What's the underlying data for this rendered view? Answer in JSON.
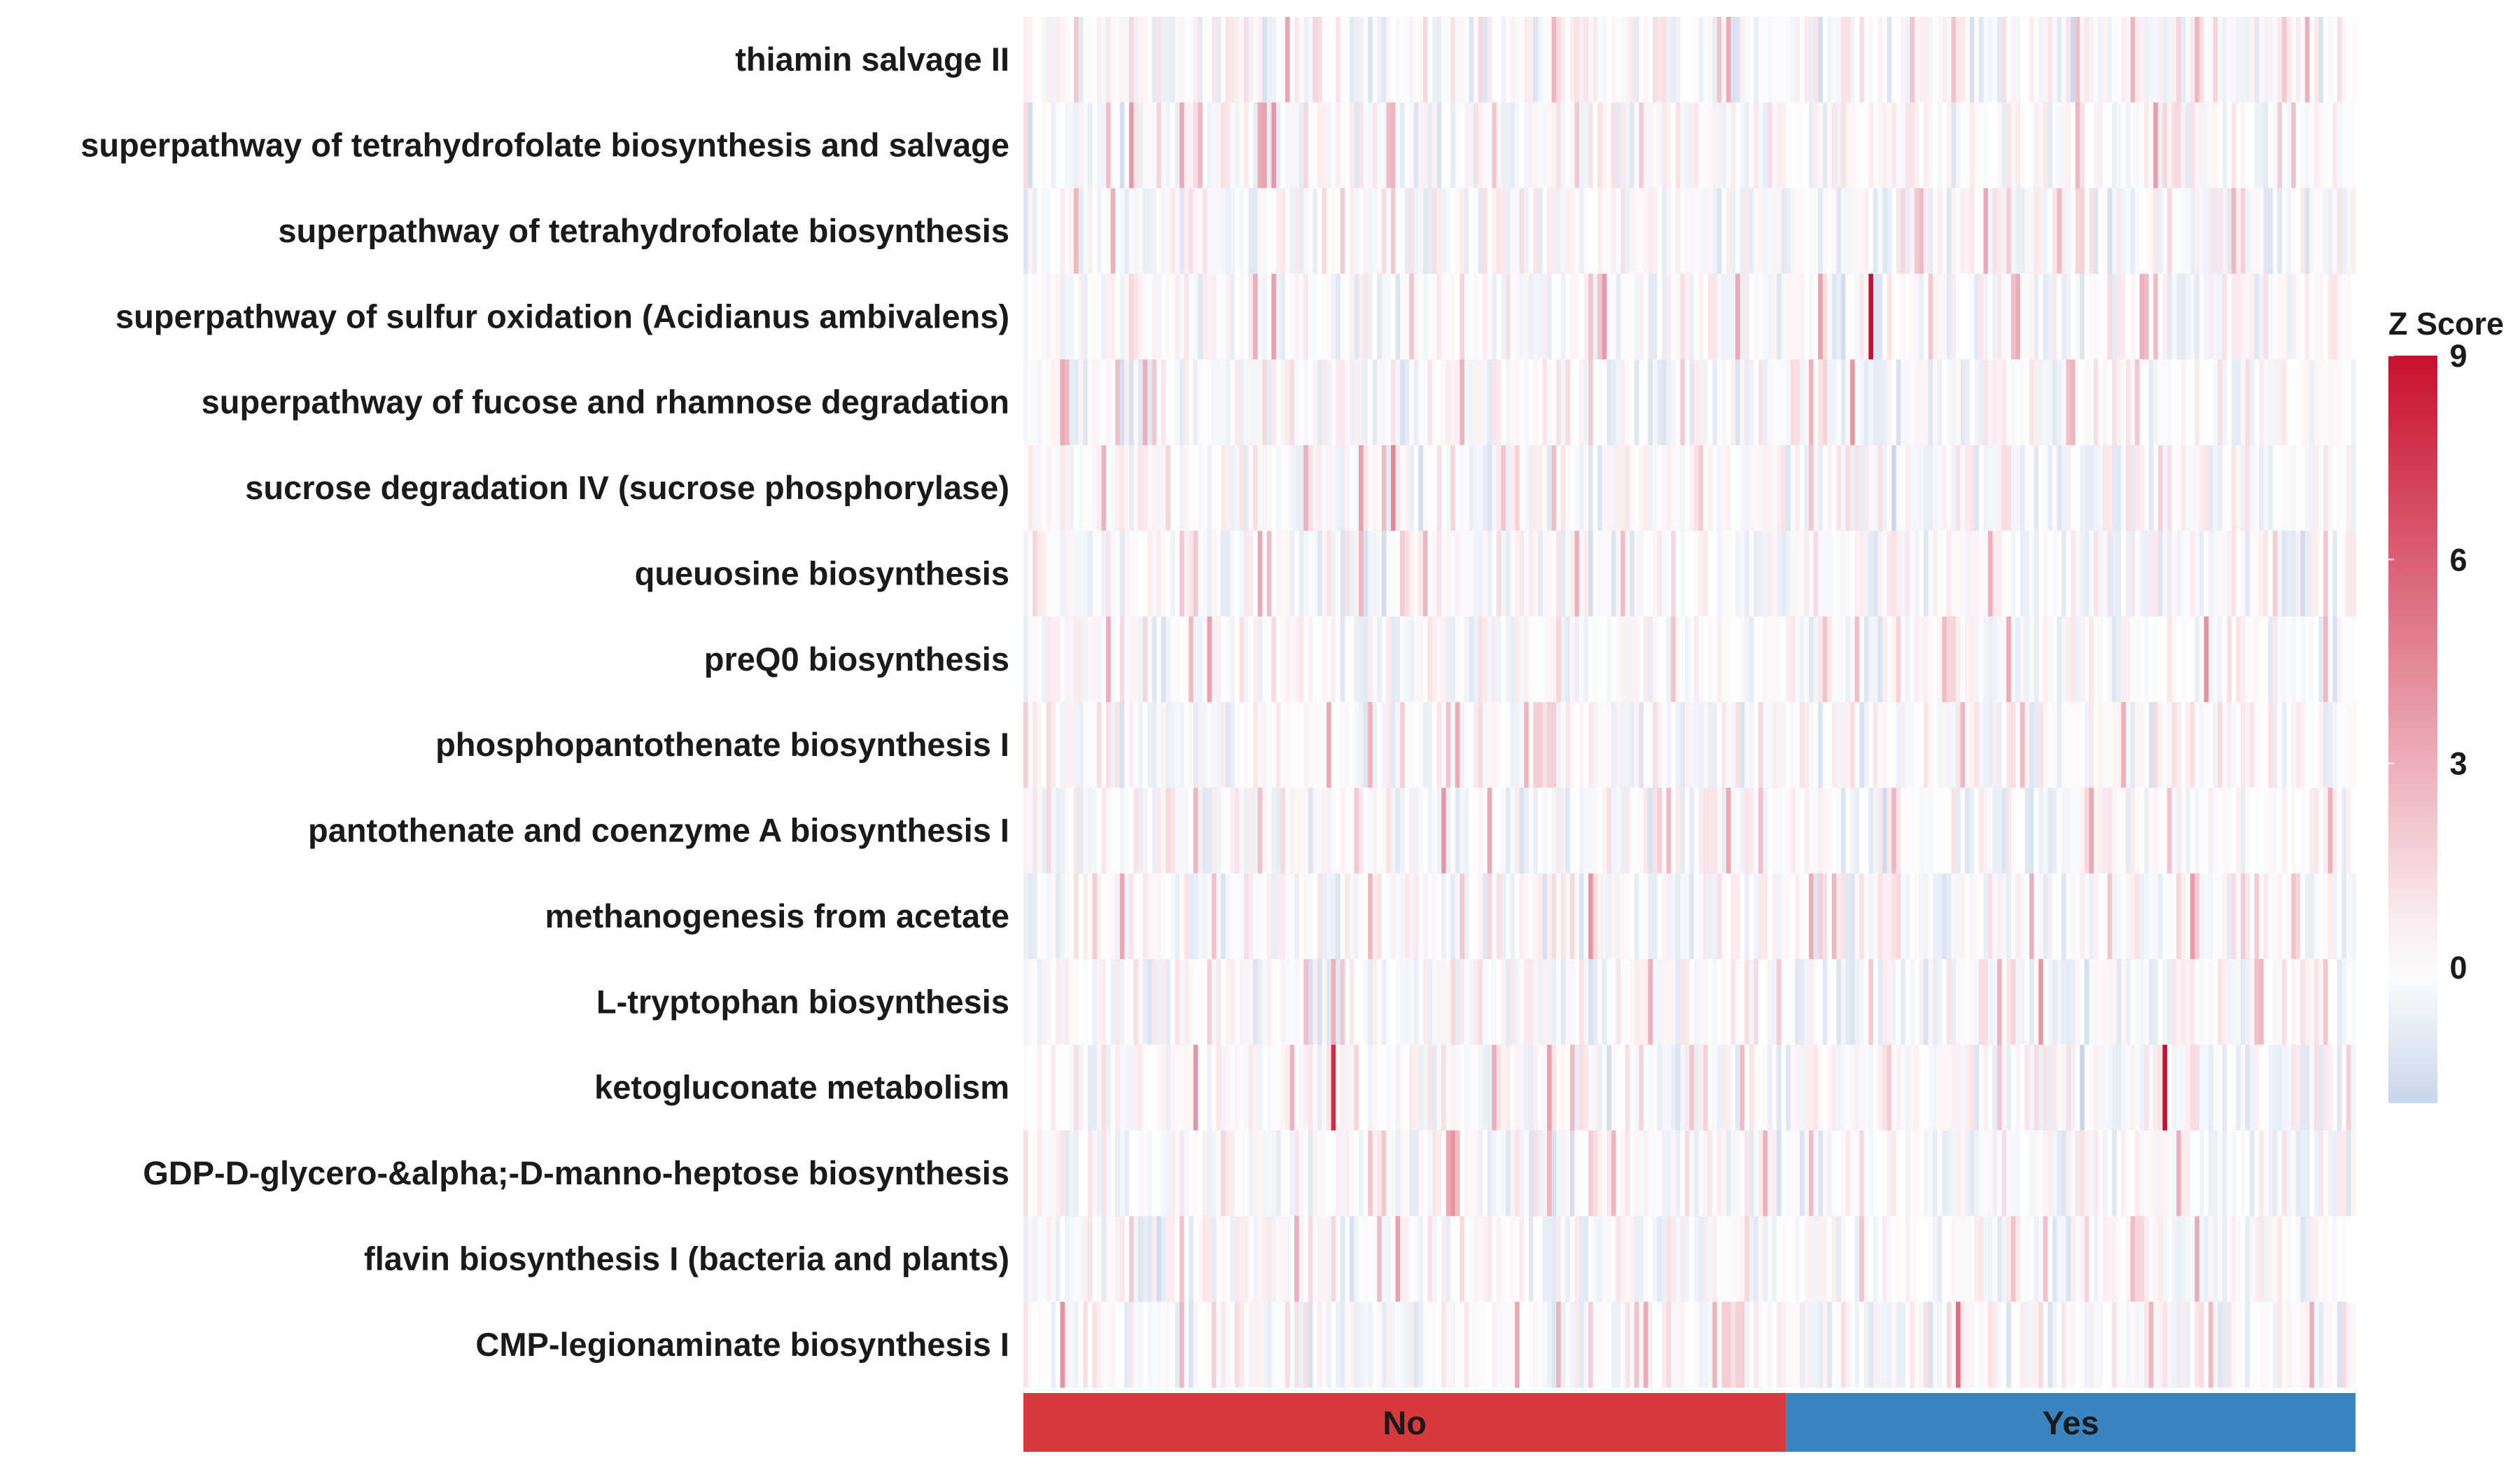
{
  "chart_data": {
    "type": "heatmap",
    "rows": [
      "thiamin salvage II",
      "superpathway of tetrahydrofolate biosynthesis and salvage",
      "superpathway of tetrahydrofolate biosynthesis",
      "superpathway of sulfur oxidation (Acidianus ambivalens)",
      "superpathway of fucose and rhamnose degradation",
      "sucrose degradation IV (sucrose phosphorylase)",
      "queuosine biosynthesis",
      "preQ0 biosynthesis",
      "phosphopantothenate biosynthesis I",
      "pantothenate and coenzyme A biosynthesis I",
      "methanogenesis from acetate",
      "L-tryptophan biosynthesis",
      "ketogluconate metabolism",
      "GDP-D-glycero-&alpha;-D-manno-heptose biosynthesis",
      "flavin biosynthesis I (bacteria and plants)",
      "CMP-legionaminate biosynthesis I"
    ],
    "column_groups": [
      {
        "name": "No",
        "n_columns": 166,
        "color": "#d7393c"
      },
      {
        "name": "Yes",
        "n_columns": 124,
        "color": "#3a84bf"
      }
    ],
    "legend": {
      "title": "Z Score",
      "ticks": [
        0,
        3,
        6,
        9
      ],
      "min": -2,
      "max": 9,
      "color_low": "#c8d6ea",
      "color_mid": "#ffffff",
      "color_high": "#c8102e"
    },
    "notable_cells": [
      {
        "row": "superpathway of sulfur oxidation (Acidianus ambivalens)",
        "group": "Yes",
        "value": 9
      },
      {
        "row": "ketogluconate metabolism",
        "group": "No",
        "value": 8
      },
      {
        "row": "ketogluconate metabolism",
        "group": "Yes",
        "value": 9
      },
      {
        "row": "ketogluconate metabolism",
        "group": "No",
        "value": 4
      },
      {
        "row": "sucrose degradation IV (sucrose phosphorylase)",
        "group": "No",
        "value": 4.5
      },
      {
        "row": "methanogenesis from acetate",
        "group": "No",
        "value": 4
      },
      {
        "row": "CMP-legionaminate biosynthesis I",
        "group": "Yes",
        "value": 5.5
      },
      {
        "row": "GDP-D-glycero-&alpha;-D-manno-heptose biosynthesis",
        "group": "No",
        "value": 4
      }
    ],
    "xlabel": "",
    "ylabel": ""
  }
}
